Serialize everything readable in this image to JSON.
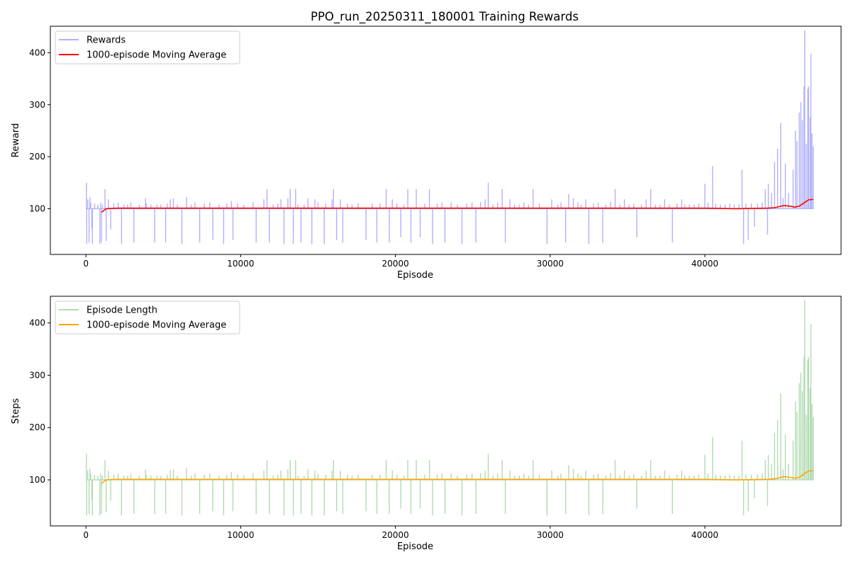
{
  "figure": {
    "title": "PPO_run_20250311_180001 Training Rewards"
  },
  "chart_data": [
    {
      "type": "line",
      "title": "PPO_run_20250311_180001 Training Rewards",
      "xlabel": "Episode",
      "ylabel": "Reward",
      "xlim": [
        -2300,
        48800
      ],
      "ylim": [
        12,
        451
      ],
      "xticks": [
        0,
        10000,
        20000,
        30000,
        40000
      ],
      "yticks": [
        100,
        200,
        300,
        400
      ],
      "grid": false,
      "legend_position": "upper-left",
      "series": [
        {
          "name": "Rewards",
          "color": "#b2b2fa",
          "baseline": 100,
          "dips": [
            [
              30,
              150
            ],
            [
              50,
              32
            ],
            [
              120,
              118
            ],
            [
              200,
              35
            ],
            [
              260,
              122
            ],
            [
              310,
              112
            ],
            [
              380,
              62
            ],
            [
              420,
              32
            ],
            [
              560,
              110
            ],
            [
              770,
              108
            ],
            [
              900,
              32
            ],
            [
              960,
              112
            ],
            [
              1000,
              35
            ],
            [
              1070,
              108
            ],
            [
              1230,
              138
            ],
            [
              1310,
              38
            ],
            [
              1450,
              118
            ],
            [
              1600,
              60
            ],
            [
              1800,
              110
            ],
            [
              2080,
              112
            ],
            [
              2300,
              32
            ],
            [
              2460,
              108
            ],
            [
              2700,
              108
            ],
            [
              2900,
              112
            ],
            [
              3100,
              35
            ],
            [
              3450,
              108
            ],
            [
              3850,
              120
            ],
            [
              3900,
              110
            ],
            [
              4200,
              108
            ],
            [
              4450,
              35
            ],
            [
              4600,
              108
            ],
            [
              4850,
              108
            ],
            [
              5150,
              35
            ],
            [
              5250,
              110
            ],
            [
              5450,
              118
            ],
            [
              5650,
              120
            ],
            [
              5900,
              108
            ],
            [
              6200,
              32
            ],
            [
              6500,
              122
            ],
            [
              6800,
              108
            ],
            [
              7050,
              112
            ],
            [
              7350,
              35
            ],
            [
              7650,
              110
            ],
            [
              8000,
              112
            ],
            [
              8200,
              40
            ],
            [
              8600,
              108
            ],
            [
              8900,
              32
            ],
            [
              9100,
              110
            ],
            [
              9400,
              115
            ],
            [
              9500,
              40
            ],
            [
              9800,
              110
            ],
            [
              10200,
              108
            ],
            [
              10800,
              113
            ],
            [
              11000,
              35
            ],
            [
              11500,
              118
            ],
            [
              11700,
              138
            ],
            [
              11850,
              35
            ],
            [
              12100,
              108
            ],
            [
              12400,
              110
            ],
            [
              12600,
              118
            ],
            [
              12800,
              32
            ],
            [
              13050,
              120
            ],
            [
              13200,
              138
            ],
            [
              13400,
              32
            ],
            [
              13550,
              138
            ],
            [
              13700,
              108
            ],
            [
              13900,
              35
            ],
            [
              14100,
              108
            ],
            [
              14350,
              120
            ],
            [
              14600,
              32
            ],
            [
              14800,
              118
            ],
            [
              15000,
              112
            ],
            [
              15400,
              32
            ],
            [
              15500,
              110
            ],
            [
              15900,
              118
            ],
            [
              16000,
              138
            ],
            [
              16200,
              40
            ],
            [
              16450,
              118
            ],
            [
              16600,
              35
            ],
            [
              16900,
              110
            ],
            [
              17200,
              108
            ],
            [
              17600,
              110
            ],
            [
              18100,
              40
            ],
            [
              18500,
              110
            ],
            [
              18800,
              35
            ],
            [
              19000,
              110
            ],
            [
              19400,
              138
            ],
            [
              19600,
              35
            ],
            [
              19800,
              118
            ],
            [
              20100,
              110
            ],
            [
              20350,
              45
            ],
            [
              20550,
              108
            ],
            [
              20800,
              138
            ],
            [
              21000,
              35
            ],
            [
              21350,
              138
            ],
            [
              21600,
              45
            ],
            [
              21900,
              110
            ],
            [
              22200,
              138
            ],
            [
              22400,
              32
            ],
            [
              22700,
              110
            ],
            [
              23000,
              112
            ],
            [
              23200,
              35
            ],
            [
              23600,
              112
            ],
            [
              24000,
              108
            ],
            [
              24300,
              32
            ],
            [
              24600,
              110
            ],
            [
              24950,
              112
            ],
            [
              25200,
              35
            ],
            [
              25500,
              113
            ],
            [
              25800,
              118
            ],
            [
              26000,
              150
            ],
            [
              26300,
              108
            ],
            [
              26600,
              112
            ],
            [
              26900,
              138
            ],
            [
              27100,
              35
            ],
            [
              27400,
              118
            ],
            [
              27700,
              108
            ],
            [
              28000,
              108
            ],
            [
              28300,
              112
            ],
            [
              28600,
              108
            ],
            [
              28900,
              138
            ],
            [
              29300,
              110
            ],
            [
              29800,
              32
            ],
            [
              30100,
              118
            ],
            [
              30500,
              108
            ],
            [
              30700,
              112
            ],
            [
              31000,
              35
            ],
            [
              31200,
              128
            ],
            [
              31500,
              120
            ],
            [
              31800,
              112
            ],
            [
              32000,
              108
            ],
            [
              32300,
              118
            ],
            [
              32500,
              32
            ],
            [
              32800,
              110
            ],
            [
              33100,
              112
            ],
            [
              33400,
              35
            ],
            [
              33600,
              108
            ],
            [
              33900,
              113
            ],
            [
              34200,
              138
            ],
            [
              34500,
              108
            ],
            [
              34800,
              118
            ],
            [
              35100,
              108
            ],
            [
              35400,
              110
            ],
            [
              35600,
              45
            ],
            [
              35900,
              108
            ],
            [
              36200,
              118
            ],
            [
              36500,
              138
            ],
            [
              36800,
              108
            ],
            [
              37100,
              108
            ],
            [
              37400,
              118
            ],
            [
              37700,
              108
            ],
            [
              37900,
              35
            ],
            [
              38200,
              110
            ],
            [
              38500,
              118
            ],
            [
              38700,
              108
            ],
            [
              39000,
              108
            ],
            [
              39300,
              108
            ],
            [
              39600,
              110
            ],
            [
              40000,
              148
            ],
            [
              40200,
              112
            ],
            [
              40500,
              182
            ],
            [
              40700,
              110
            ],
            [
              41000,
              108
            ],
            [
              41300,
              108
            ],
            [
              41600,
              110
            ],
            [
              41900,
              108
            ],
            [
              42200,
              108
            ],
            [
              42400,
              175
            ],
            [
              42500,
              32
            ],
            [
              42650,
              110
            ],
            [
              42800,
              40
            ],
            [
              43000,
              110
            ],
            [
              43200,
              65
            ],
            [
              43400,
              110
            ],
            [
              43700,
              112
            ],
            [
              43900,
              138
            ],
            [
              44050,
              50
            ],
            [
              44100,
              148
            ],
            [
              44300,
              130
            ],
            [
              44500,
              190
            ],
            [
              44700,
              215
            ],
            [
              44900,
              265
            ],
            [
              45050,
              120
            ],
            [
              45200,
              187
            ],
            [
              45400,
              130
            ],
            [
              45550,
              100
            ],
            [
              45700,
              175
            ],
            [
              45850,
              250
            ],
            [
              45950,
              230
            ],
            [
              46100,
              285
            ],
            [
              46200,
              305
            ],
            [
              46300,
              270
            ],
            [
              46400,
              335
            ],
            [
              46450,
              443
            ],
            [
              46550,
              225
            ],
            [
              46650,
              330
            ],
            [
              46700,
              335
            ],
            [
              46800,
              275
            ],
            [
              46850,
              398
            ],
            [
              46920,
              245
            ],
            [
              47000,
              220
            ]
          ]
        },
        {
          "name": "1000-episode Moving Average",
          "color": "#ff0000",
          "points": [
            [
              1000,
              93
            ],
            [
              1300,
              100
            ],
            [
              2000,
              101
            ],
            [
              10000,
              101
            ],
            [
              20000,
              101
            ],
            [
              30000,
              101
            ],
            [
              40000,
              101
            ],
            [
              42000,
              100
            ],
            [
              44000,
              101
            ],
            [
              44500,
              102
            ],
            [
              44800,
              104
            ],
            [
              45100,
              106
            ],
            [
              45500,
              105
            ],
            [
              45800,
              103
            ],
            [
              46100,
              105
            ],
            [
              46300,
              109
            ],
            [
              46500,
              113
            ],
            [
              46700,
              117
            ],
            [
              47000,
              118
            ]
          ]
        }
      ]
    },
    {
      "type": "line",
      "title": "",
      "xlabel": "Episode",
      "ylabel": "Steps",
      "xlim": [
        -2300,
        48800
      ],
      "ylim": [
        12,
        451
      ],
      "xticks": [
        0,
        10000,
        20000,
        30000,
        40000
      ],
      "yticks": [
        100,
        200,
        300,
        400
      ],
      "grid": false,
      "legend_position": "upper-left",
      "series": [
        {
          "name": "Episode Length",
          "color": "#b2dbb2",
          "same_values_as": "Rewards"
        },
        {
          "name": "1000-episode Moving Average",
          "color": "#ffa500",
          "same_values_as": "1000-episode Moving Average"
        }
      ]
    }
  ]
}
